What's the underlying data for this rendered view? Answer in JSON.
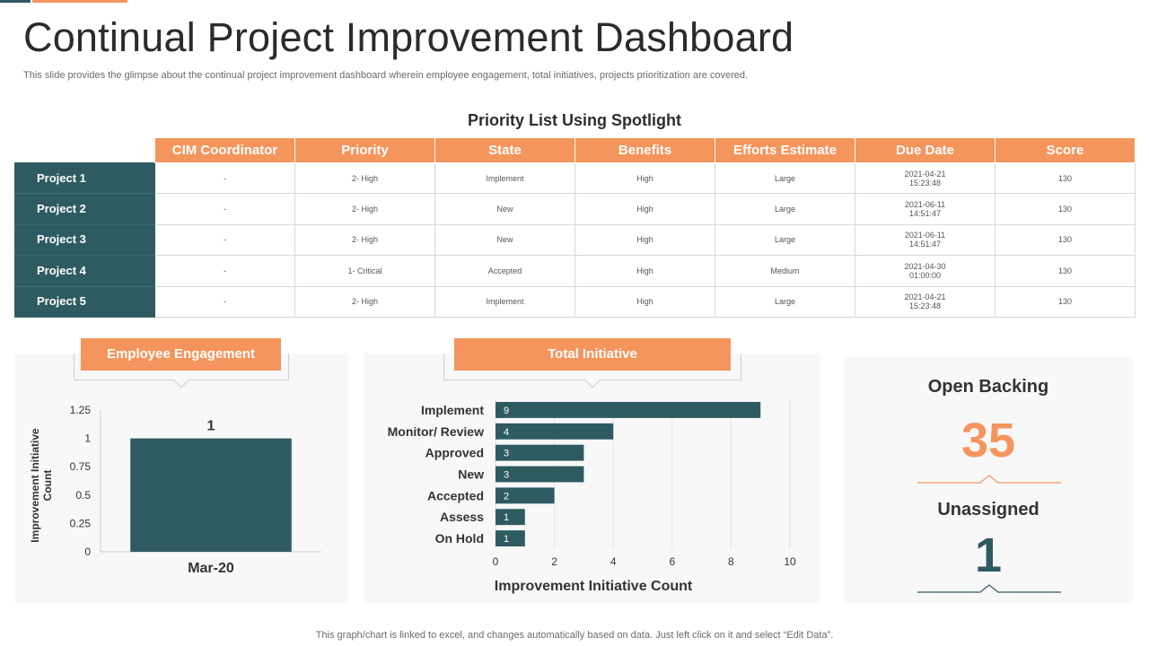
{
  "header": {
    "title": "Continual Project Improvement Dashboard",
    "subtitle": "This slide provides the glimpse about the continual project improvement dashboard wherein employee engagement, total initiatives, projects prioritization are covered."
  },
  "priority_table": {
    "title": "Priority List Using Spotlight",
    "columns": [
      "CIM Coordinator",
      "Priority",
      "State",
      "Benefits",
      "Efforts Estimate",
      "Due Date",
      "Score"
    ],
    "rows": [
      {
        "project": "Project 1",
        "coordinator": "-",
        "priority": "2- High",
        "state": "Implement",
        "benefits": "High",
        "efforts": "Large",
        "due_date": "2021-04-21",
        "due_time": "15:23:48",
        "score": "130"
      },
      {
        "project": "Project 2",
        "coordinator": "-",
        "priority": "2- High",
        "state": "New",
        "benefits": "High",
        "efforts": "Large",
        "due_date": "2021-06-11",
        "due_time": "14:51:47",
        "score": "130"
      },
      {
        "project": "Project 3",
        "coordinator": "-",
        "priority": "2- High",
        "state": "New",
        "benefits": "High",
        "efforts": "Large",
        "due_date": "2021-06-11",
        "due_time": "14:51:47",
        "score": "130"
      },
      {
        "project": "Project 4",
        "coordinator": "-",
        "priority": "1- Critical",
        "state": "Accepted",
        "benefits": "High",
        "efforts": "Medium",
        "due_date": "2021-04-30",
        "due_time": "01:00:00",
        "score": "130"
      },
      {
        "project": "Project 5",
        "coordinator": "-",
        "priority": "2- High",
        "state": "Implement",
        "benefits": "High",
        "efforts": "Large",
        "due_date": "2021-04-21",
        "due_time": "15:23:48",
        "score": "130"
      }
    ]
  },
  "employee_engagement": {
    "tab_label": "Employee Engagement"
  },
  "total_initiative": {
    "tab_label": "Total Initiative"
  },
  "open_backing": {
    "title": "Open Backing",
    "value": "35",
    "unassigned_title": "Unassigned",
    "unassigned_value": "1"
  },
  "footer": {
    "note": "This graph/chart is linked to excel,  and changes automatically based on data. Just left click on it and select “Edit Data”."
  },
  "colors": {
    "accent": "#f4955d",
    "dark_teal": "#2e5b61",
    "panel_bg": "#f8f8f8"
  },
  "chart_data": [
    {
      "type": "bar",
      "categories": [
        "Mar-20"
      ],
      "values": [
        1
      ],
      "data_labels": [
        "1"
      ],
      "ylabel": "Improvement Initiative Count",
      "ylim": [
        0,
        1.25
      ],
      "yticks": [
        0,
        0.25,
        0.5,
        0.75,
        1,
        1.25
      ],
      "ytick_labels": [
        "0",
        "0.25",
        "0.5",
        "0.75",
        "1",
        "1.25"
      ],
      "grid": false
    },
    {
      "type": "bar",
      "orientation": "horizontal",
      "categories": [
        "Implement",
        "Monitor/ Review",
        "Approved",
        "New",
        "Accepted",
        "Assess",
        "On Hold"
      ],
      "values": [
        9,
        4,
        3,
        3,
        2,
        1,
        1
      ],
      "xlabel": "Improvement Initiative Count",
      "xlim": [
        0,
        10
      ],
      "xticks": [
        0,
        2,
        4,
        6,
        8,
        10
      ],
      "grid": true
    }
  ]
}
